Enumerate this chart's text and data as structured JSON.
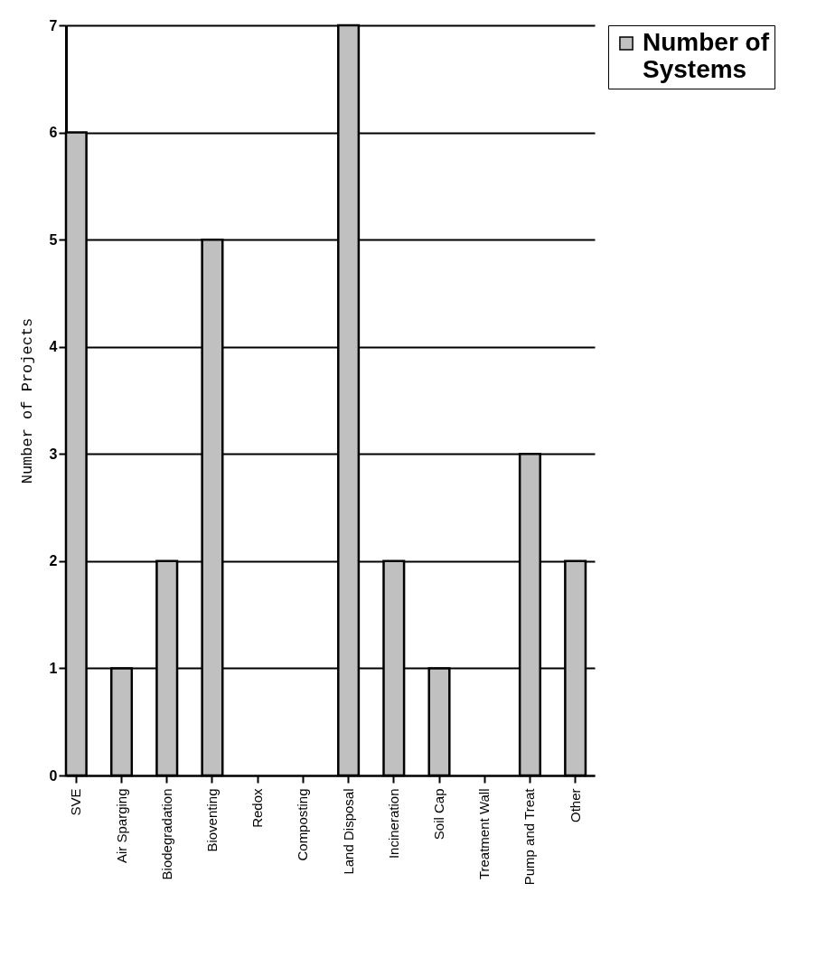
{
  "chart_data": {
    "type": "bar",
    "ylabel": "Number of Projects",
    "categories": [
      "SVE",
      "Air Sparging",
      "Biodegradation",
      "Bioventing",
      "Redox",
      "Composting",
      "Land Disposal",
      "Incineration",
      "Soil Cap",
      "Treatment Wall",
      "Pump and Treat",
      "Other"
    ],
    "series": [
      {
        "name": "Number of Systems",
        "color": "#c0c0c0",
        "values": [
          6,
          1,
          2,
          5,
          0,
          0,
          7,
          2,
          1,
          0,
          3,
          2
        ]
      }
    ],
    "ylim": [
      0,
      7
    ],
    "yticks": [
      0,
      1,
      2,
      3,
      4,
      5,
      6,
      7
    ],
    "grid": "y",
    "legend": "right"
  }
}
